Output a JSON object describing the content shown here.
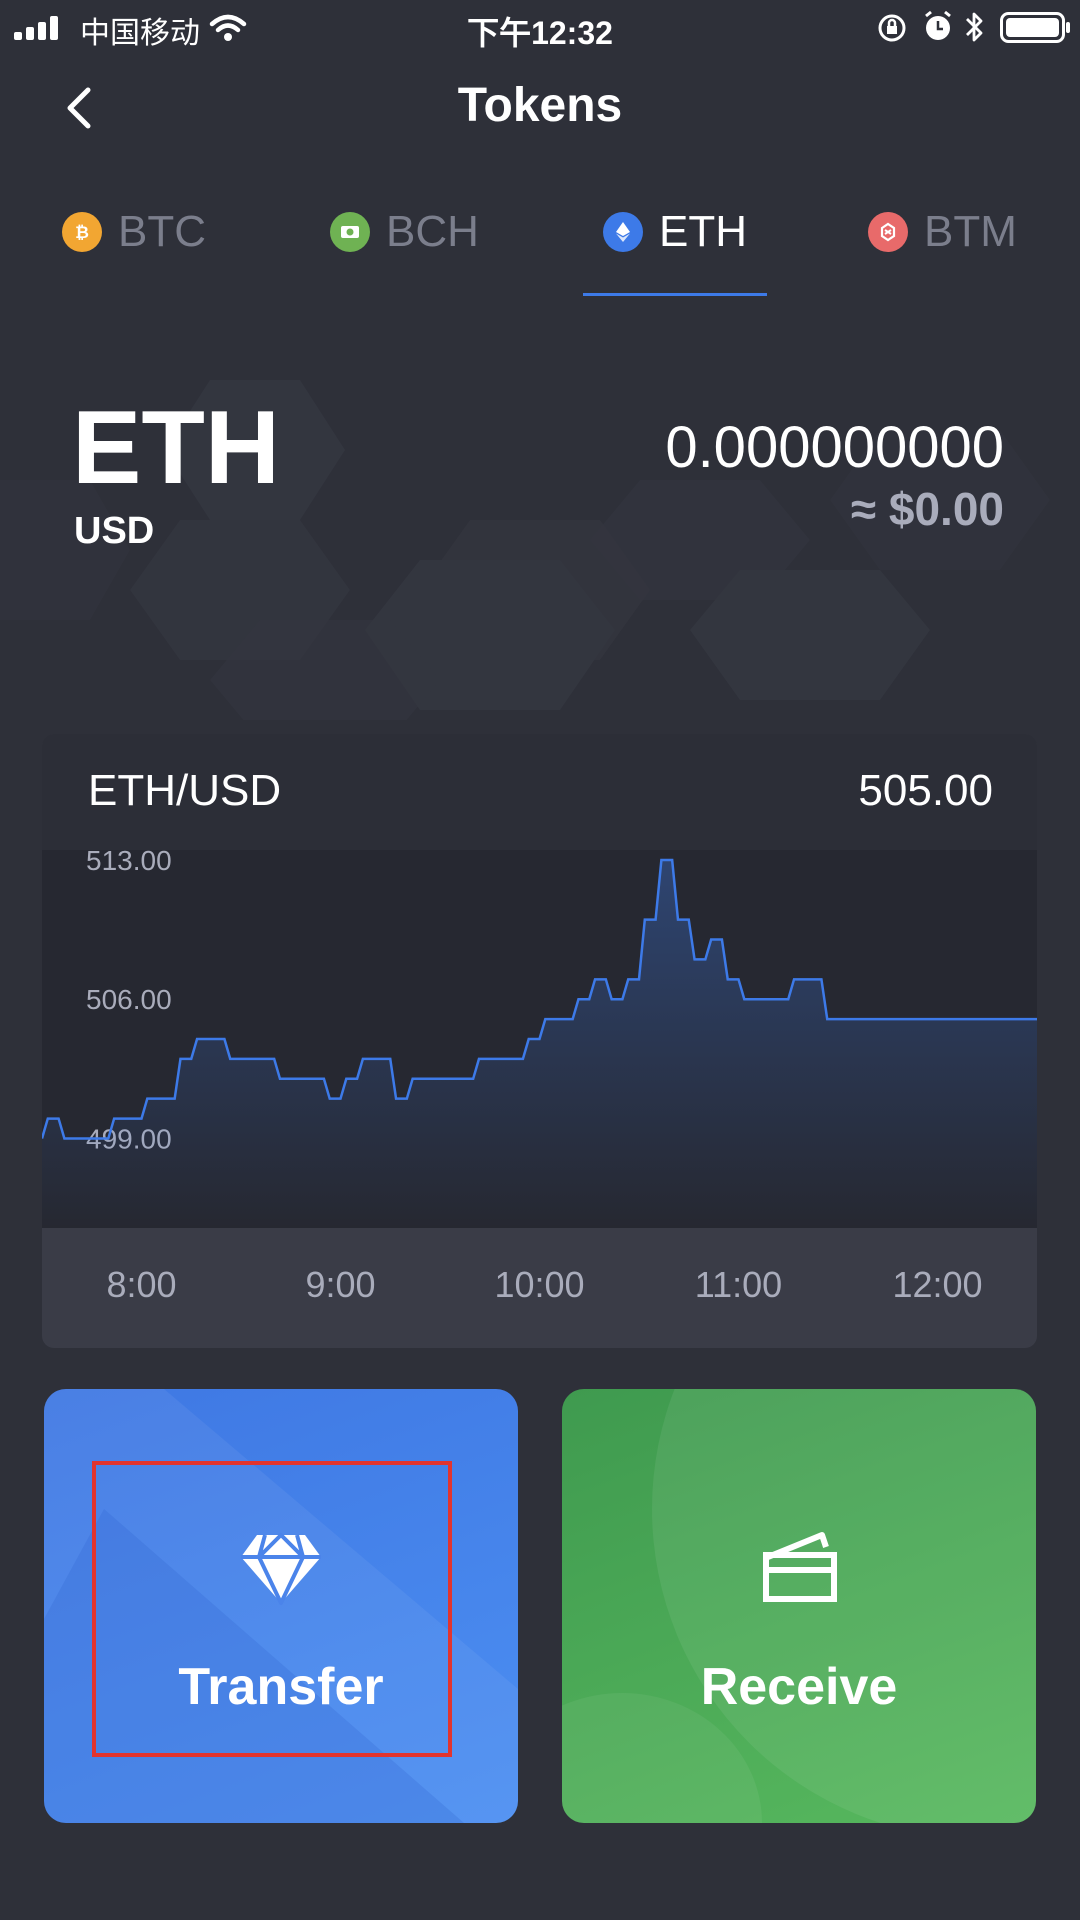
{
  "status_bar": {
    "carrier": "中国移动",
    "time": "下午12:32"
  },
  "header": {
    "title": "Tokens"
  },
  "tabs": [
    {
      "label": "BTC",
      "icon": "btc-coin-icon",
      "color": "#f2a632",
      "active": false
    },
    {
      "label": "BCH",
      "icon": "bch-coin-icon",
      "color": "#6fb253",
      "active": false
    },
    {
      "label": "ETH",
      "icon": "eth-coin-icon",
      "color": "#3d7ae8",
      "active": true
    },
    {
      "label": "BTM",
      "icon": "btm-coin-icon",
      "color": "#e86a6a",
      "active": false
    }
  ],
  "hero": {
    "symbol": "ETH",
    "currency": "USD",
    "balance": "0.000000000",
    "approx_value": "≈ $0.00"
  },
  "chart_card": {
    "pair": "ETH/USD",
    "price": "505.00"
  },
  "chart_data": {
    "type": "line",
    "title": "",
    "xlabel": "",
    "ylabel": "",
    "y_tick_labels": [
      "513.00",
      "506.00",
      "499.00"
    ],
    "y_ticks": [
      513,
      506,
      499
    ],
    "x_tick_labels": [
      "8:00",
      "9:00",
      "10:00",
      "11:00",
      "12:00"
    ],
    "x_range": [
      "7:30",
      "12:30"
    ],
    "ylim": [
      494.5,
      513.5
    ],
    "series": [
      {
        "color": "#3d7ae8",
        "x": [
          "7:30",
          "7:35",
          "7:40",
          "7:45",
          "7:50",
          "7:55",
          "8:00",
          "8:05",
          "8:10",
          "8:15",
          "8:20",
          "8:25",
          "8:30",
          "8:35",
          "8:40",
          "8:45",
          "8:50",
          "8:55",
          "9:00",
          "9:05",
          "9:10",
          "9:15",
          "9:20",
          "9:25",
          "9:30",
          "9:35",
          "9:40",
          "9:45",
          "9:50",
          "9:55",
          "10:00",
          "10:05",
          "10:10",
          "10:15",
          "10:20",
          "10:25",
          "10:30",
          "10:35",
          "10:40",
          "10:45",
          "10:50",
          "10:55",
          "11:00",
          "11:05",
          "11:10",
          "11:15",
          "11:20",
          "11:25",
          "11:30",
          "11:35",
          "11:40",
          "11:45",
          "11:50",
          "11:55",
          "12:00",
          "12:05",
          "12:10",
          "12:15",
          "12:20",
          "12:25",
          "12:30"
        ],
        "y": [
          499,
          500,
          499,
          499,
          499,
          500,
          500,
          501,
          501,
          503,
          504,
          504,
          503,
          503,
          503,
          502,
          502,
          502,
          501,
          502,
          503,
          503,
          501,
          502,
          502,
          502,
          502,
          503,
          503,
          503,
          504,
          505,
          505,
          506,
          507,
          506,
          507,
          510,
          513,
          510,
          508,
          509,
          507,
          506,
          506,
          506,
          507,
          507,
          505,
          505,
          505,
          505,
          505,
          505,
          505,
          505,
          505,
          505,
          505,
          505,
          505
        ]
      }
    ]
  },
  "actions": {
    "transfer_label": "Transfer",
    "receive_label": "Receive"
  }
}
